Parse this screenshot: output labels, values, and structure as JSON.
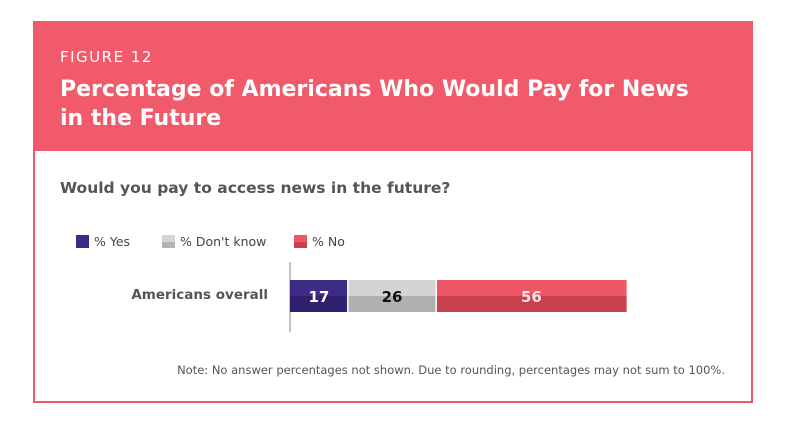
{
  "figure": {
    "label": "FIGURE 12",
    "title": "Percentage of Americans Who Would Pay for News in the Future",
    "question": "Would you pay to access news in the future?",
    "note": "Note: No answer percentages not shown. Due to rounding, percentages may not sum to 100%."
  },
  "colors": {
    "accent": "#f05a6a",
    "yes": "#3e2b85",
    "dont_know": "#d4d4d2",
    "no": "#ee5565"
  },
  "chart_data": {
    "type": "bar",
    "orientation": "horizontal",
    "stacked": true,
    "categories": [
      "Americans overall"
    ],
    "series": [
      {
        "name": "% Yes",
        "values": [
          17
        ],
        "color": "#3e2b85",
        "label_color": "#ffffff"
      },
      {
        "name": "% Don't know",
        "values": [
          26
        ],
        "color": "#d4d4d2",
        "label_color": "#111111"
      },
      {
        "name": "% No",
        "values": [
          56
        ],
        "color": "#ee5565",
        "label_color": "#f4e4e6"
      }
    ],
    "legend_position": "top-left",
    "grid": false
  }
}
